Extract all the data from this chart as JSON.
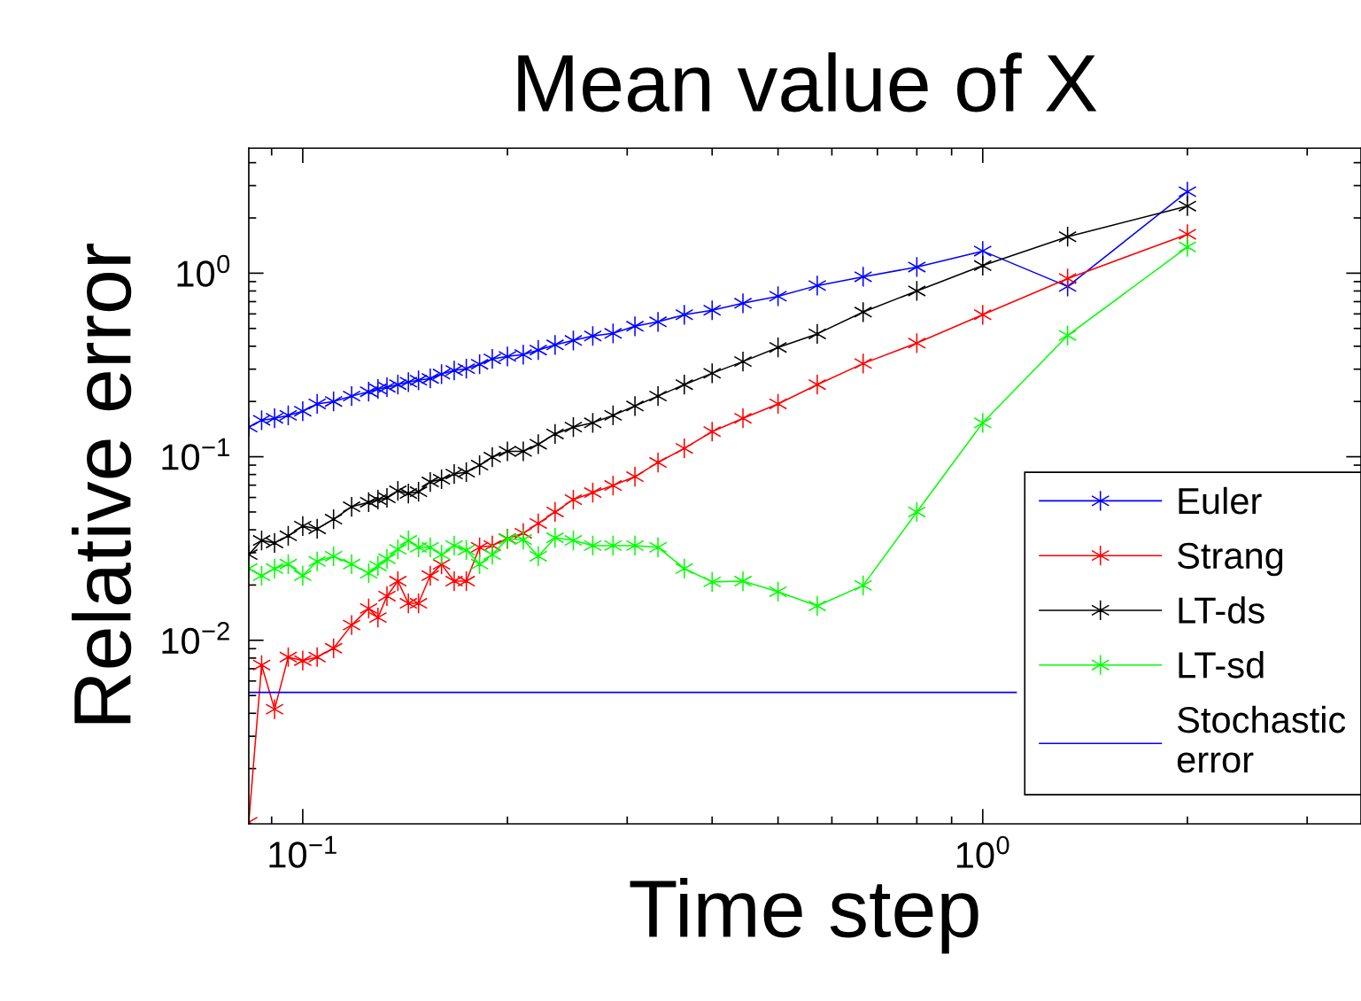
{
  "chart_data": {
    "type": "line",
    "title": "Mean value of X",
    "xlabel": "Time step",
    "ylabel": "Relative error",
    "log": "xy",
    "grid": false,
    "legend": "bottom right",
    "marker": "cross",
    "line_style": "solid",
    "xlim": [
      0.0833,
      3.6
    ],
    "ylim": [
      0.001,
      4.8
    ],
    "xticks": [
      {
        "value": 0.1,
        "label": "10$^{−1}$"
      },
      {
        "value": 1,
        "label": "10$^{0}$"
      }
    ],
    "yticks": [
      {
        "value": 0.01,
        "label": "10$^{−2}$"
      },
      {
        "value": 0.1,
        "label": "10$^{−1}$"
      },
      {
        "value": 1,
        "label": "10$^{0}$"
      }
    ],
    "x": [
      0.0833,
      0.087,
      0.0909,
      0.0952,
      0.1,
      0.105,
      0.111,
      0.118,
      0.125,
      0.129,
      0.133,
      0.138,
      0.143,
      0.148,
      0.154,
      0.16,
      0.167,
      0.174,
      0.182,
      0.19,
      0.2,
      0.211,
      0.222,
      0.235,
      0.25,
      0.267,
      0.286,
      0.308,
      0.333,
      0.364,
      0.4,
      0.444,
      0.5,
      0.571,
      0.667,
      0.8,
      1,
      1.333,
      2
    ],
    "series": [
      {
        "name": "Euler",
        "color": "#0000ff",
        "values": [
          0.145,
          0.158,
          0.162,
          0.168,
          0.177,
          0.194,
          0.2,
          0.214,
          0.226,
          0.234,
          0.239,
          0.247,
          0.255,
          0.261,
          0.267,
          0.282,
          0.295,
          0.302,
          0.319,
          0.341,
          0.352,
          0.36,
          0.381,
          0.407,
          0.43,
          0.455,
          0.47,
          0.514,
          0.543,
          0.594,
          0.628,
          0.686,
          0.749,
          0.856,
          0.956,
          1.08,
          1.32,
          0.847,
          2.78
        ]
      },
      {
        "name": "Strang",
        "color": "#ff0000",
        "values": [
          0.00102,
          0.00733,
          0.00421,
          0.0081,
          0.00775,
          0.0081,
          0.00905,
          0.0121,
          0.0149,
          0.0133,
          0.0174,
          0.021,
          0.0159,
          0.0159,
          0.0225,
          0.0259,
          0.021,
          0.021,
          0.0321,
          0.0328,
          0.0358,
          0.0383,
          0.0433,
          0.05,
          0.0584,
          0.0638,
          0.0697,
          0.0779,
          0.0931,
          0.111,
          0.137,
          0.162,
          0.194,
          0.247,
          0.322,
          0.416,
          0.594,
          0.935,
          1.63
        ]
      },
      {
        "name": "LT-ds",
        "color": "#000000",
        "values": [
          0.0293,
          0.035,
          0.0339,
          0.0371,
          0.0419,
          0.0405,
          0.0457,
          0.0534,
          0.0565,
          0.0584,
          0.0597,
          0.0652,
          0.0631,
          0.0645,
          0.0729,
          0.0754,
          0.0805,
          0.0824,
          0.09,
          0.0995,
          0.107,
          0.107,
          0.117,
          0.133,
          0.145,
          0.153,
          0.168,
          0.189,
          0.214,
          0.247,
          0.285,
          0.33,
          0.394,
          0.467,
          0.614,
          0.8,
          1.1,
          1.58,
          2.32
        ]
      },
      {
        "name": "LT-sd",
        "color": "#00ff00",
        "values": [
          0.0246,
          0.0225,
          0.0246,
          0.026,
          0.0225,
          0.0269,
          0.0287,
          0.026,
          0.0232,
          0.0254,
          0.0278,
          0.0313,
          0.035,
          0.0321,
          0.0321,
          0.0293,
          0.0328,
          0.031,
          0.026,
          0.0293,
          0.0356,
          0.0354,
          0.0287,
          0.0362,
          0.035,
          0.0328,
          0.0328,
          0.0328,
          0.0321,
          0.0246,
          0.0208,
          0.021,
          0.0184,
          0.0154,
          0.0199,
          0.05,
          0.153,
          0.458,
          1.39
        ]
      },
      {
        "name": "Stochastic error",
        "color": "#0000ff",
        "marker": "none",
        "x": [
          0.0833,
          1.12
        ],
        "values": [
          0.0052,
          0.0052
        ]
      }
    ]
  }
}
